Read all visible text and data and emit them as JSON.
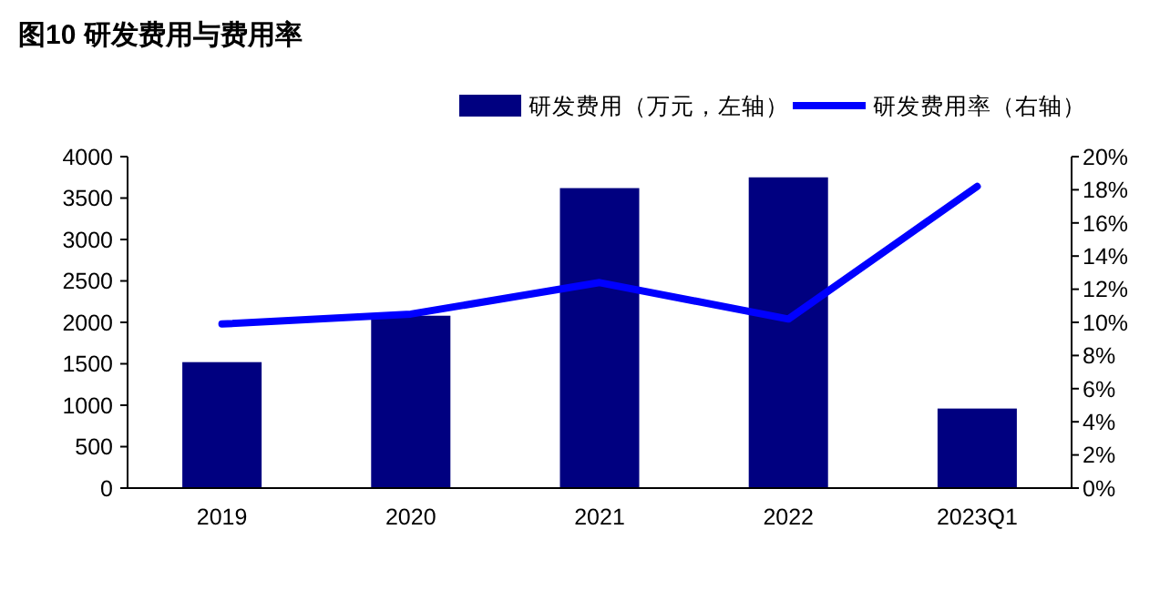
{
  "chart_data": {
    "type": "bar",
    "title": "图10 研发费用与费用率",
    "categories": [
      "2019",
      "2020",
      "2021",
      "2022",
      "2023Q1"
    ],
    "series": [
      {
        "name": "研发费用（万元，左轴）",
        "color": "#000080",
        "values": [
          1520,
          2080,
          3620,
          3750,
          960
        ]
      },
      {
        "name": "研发费用率（右轴）",
        "type": "line",
        "axis": "y2",
        "color": "#0000ff",
        "values": [
          9.9,
          10.5,
          12.4,
          10.2,
          18.2
        ]
      }
    ],
    "ylim": [
      0,
      4000
    ],
    "yticks": [
      0,
      500,
      1000,
      1500,
      2000,
      2500,
      3000,
      3500,
      4000
    ],
    "y2lim": [
      0,
      20
    ],
    "y2ticks": [
      {
        "value": 0,
        "label": "0%"
      },
      {
        "value": 2,
        "label": "2%"
      },
      {
        "value": 4,
        "label": "4%"
      },
      {
        "value": 6,
        "label": "6%"
      },
      {
        "value": 8,
        "label": "8%"
      },
      {
        "value": 10,
        "label": "10%"
      },
      {
        "value": 12,
        "label": "12%"
      },
      {
        "value": 14,
        "label": "14%"
      },
      {
        "value": 16,
        "label": "16%"
      },
      {
        "value": 18,
        "label": "18%"
      },
      {
        "value": 20,
        "label": "20%"
      }
    ],
    "grid": false,
    "legend": "top right",
    "marker": "none",
    "line_style": "solid"
  }
}
